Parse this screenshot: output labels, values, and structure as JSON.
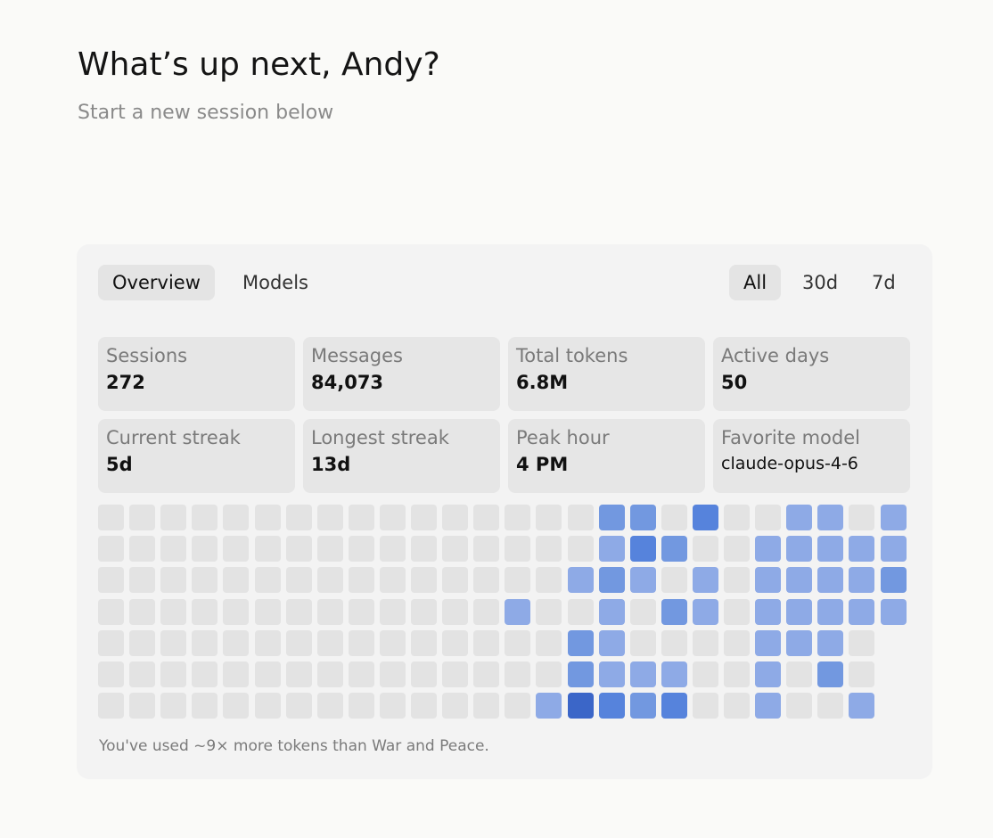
{
  "header": {
    "title": "What’s up next, Andy?",
    "subtitle": "Start a new session below"
  },
  "tabs": {
    "items": [
      "Overview",
      "Models"
    ],
    "active_index": 0
  },
  "ranges": {
    "items": [
      "All",
      "30d",
      "7d"
    ],
    "active_index": 0
  },
  "stats": [
    {
      "label": "Sessions",
      "value": "272"
    },
    {
      "label": "Messages",
      "value": "84,073"
    },
    {
      "label": "Total tokens",
      "value": "6.8M"
    },
    {
      "label": "Active days",
      "value": "50"
    },
    {
      "label": "Current streak",
      "value": "5d"
    },
    {
      "label": "Longest streak",
      "value": "13d"
    },
    {
      "label": "Peak hour",
      "value": "4 PM"
    },
    {
      "label": "Favorite model",
      "value": "claude-opus-4-6"
    }
  ],
  "heatmap": {
    "palette": [
      "#e3e3e3",
      "#8eaae6",
      "#7298e0",
      "#5683dc",
      "#3b66c8"
    ],
    "rows": [
      [
        0,
        0,
        0,
        0,
        0,
        0,
        0,
        0,
        0,
        0,
        0,
        0,
        0,
        0,
        0,
        0,
        2,
        2,
        0,
        3,
        0,
        0,
        1,
        1,
        0,
        1
      ],
      [
        0,
        0,
        0,
        0,
        0,
        0,
        0,
        0,
        0,
        0,
        0,
        0,
        0,
        0,
        0,
        0,
        1,
        3,
        2,
        0,
        0,
        1,
        1,
        1,
        1,
        1
      ],
      [
        0,
        0,
        0,
        0,
        0,
        0,
        0,
        0,
        0,
        0,
        0,
        0,
        0,
        0,
        0,
        1,
        2,
        1,
        0,
        1,
        0,
        1,
        1,
        1,
        1,
        2
      ],
      [
        0,
        0,
        0,
        0,
        0,
        0,
        0,
        0,
        0,
        0,
        0,
        0,
        0,
        1,
        0,
        0,
        1,
        0,
        2,
        1,
        0,
        1,
        1,
        1,
        1,
        1
      ],
      [
        0,
        0,
        0,
        0,
        0,
        0,
        0,
        0,
        0,
        0,
        0,
        0,
        0,
        0,
        0,
        2,
        1,
        0,
        0,
        0,
        0,
        1,
        1,
        1,
        0,
        null
      ],
      [
        0,
        0,
        0,
        0,
        0,
        0,
        0,
        0,
        0,
        0,
        0,
        0,
        0,
        0,
        0,
        2,
        1,
        1,
        1,
        0,
        0,
        1,
        0,
        2,
        0,
        null
      ],
      [
        0,
        0,
        0,
        0,
        0,
        0,
        0,
        0,
        0,
        0,
        0,
        0,
        0,
        0,
        1,
        4,
        3,
        2,
        3,
        0,
        0,
        1,
        0,
        0,
        1,
        null
      ]
    ]
  },
  "footer": "You've used ~9× more tokens than War and Peace."
}
